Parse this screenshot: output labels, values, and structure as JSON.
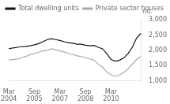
{
  "chart_data": {
    "type": "line",
    "ylabel": "no.",
    "categories": [
      "Mar\n2004",
      null,
      null,
      null,
      null,
      null,
      "Sep\n2005",
      null,
      null,
      null,
      null,
      null,
      "Mar\n2007",
      null,
      null,
      null,
      null,
      null,
      "Sep\n2008",
      null,
      null,
      null,
      null,
      null,
      "Mar\n2010",
      null,
      null,
      null,
      null,
      null,
      null,
      null
    ],
    "series": [
      {
        "name": "Total dwelling units",
        "color": "#111111",
        "values": [
          2050,
          2080,
          2100,
          2120,
          2130,
          2150,
          2180,
          2220,
          2280,
          2350,
          2380,
          2350,
          2320,
          2280,
          2250,
          2230,
          2200,
          2200,
          2170,
          2150,
          2160,
          2100,
          2050,
          1900,
          1700,
          1650,
          1680,
          1750,
          1900,
          2100,
          2400,
          2550
        ]
      },
      {
        "name": "Private sector houses",
        "color": "#aaaaaa",
        "values": [
          1680,
          1700,
          1720,
          1760,
          1800,
          1860,
          1900,
          1940,
          1980,
          2000,
          2050,
          2020,
          1980,
          1950,
          1900,
          1870,
          1820,
          1800,
          1760,
          1720,
          1680,
          1550,
          1450,
          1300,
          1200,
          1150,
          1200,
          1280,
          1400,
          1550,
          1700,
          1800
        ]
      }
    ],
    "ylim": [
      1000,
      3000
    ],
    "yticks": [
      1000,
      1500,
      2000,
      2500,
      3000
    ],
    "grid": false,
    "legend": "upper left"
  }
}
